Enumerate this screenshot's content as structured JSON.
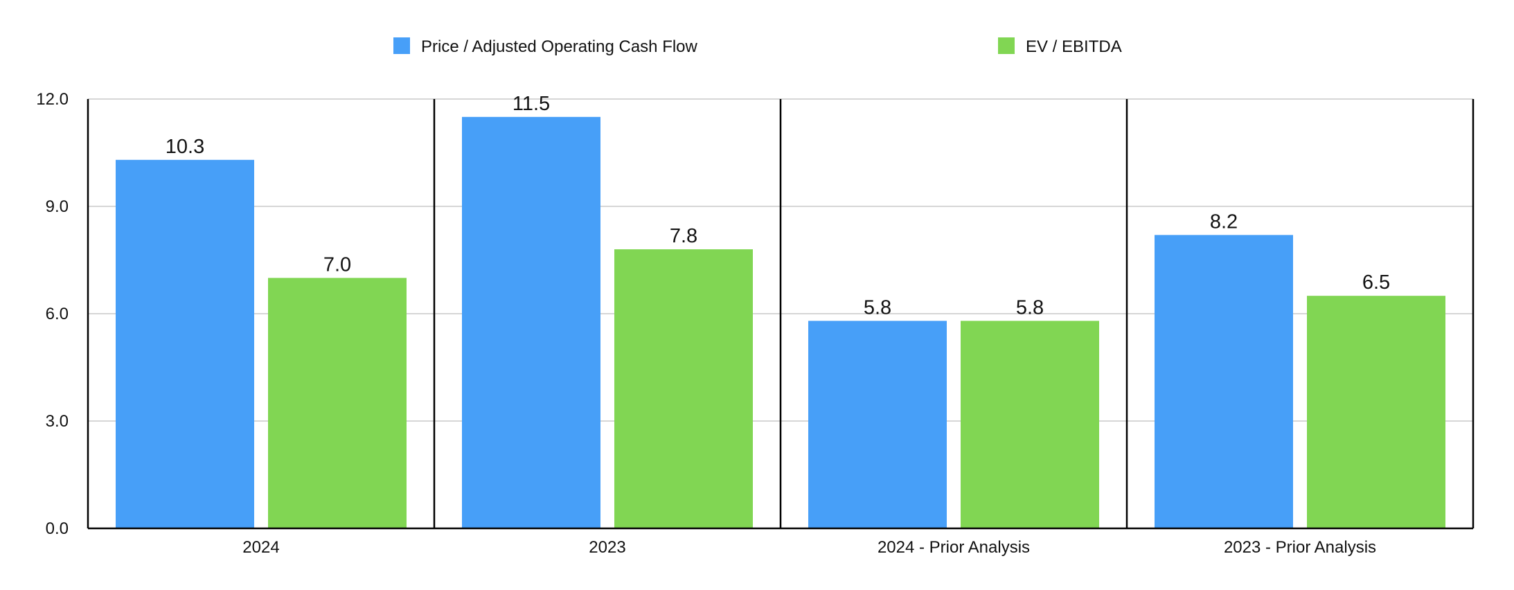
{
  "colors": {
    "series_0": "#479ff8",
    "series_1": "#81d653",
    "grid": "#c8c8c8",
    "axis": "#000000",
    "text": "#111111",
    "background": "#ffffff"
  },
  "chart_data": {
    "type": "bar",
    "title": "",
    "xlabel": "",
    "ylabel": "",
    "categories": [
      "2024",
      "2023",
      "2024 - Prior Analysis",
      "2023 - Prior Analysis"
    ],
    "series": [
      {
        "name": "Price / Adjusted Operating Cash Flow",
        "values": [
          10.3,
          11.5,
          5.8,
          8.2
        ]
      },
      {
        "name": "EV / EBITDA",
        "values": [
          7.0,
          7.8,
          5.8,
          6.5
        ]
      }
    ],
    "data_labels": [
      [
        "10.3",
        "11.5",
        "5.8",
        "8.2"
      ],
      [
        "7.0",
        "7.8",
        "5.8",
        "6.5"
      ]
    ],
    "ylim": [
      0,
      12
    ],
    "yticks": [
      0,
      3,
      6,
      9,
      12
    ],
    "ytick_labels": [
      "0.0",
      "3.0",
      "6.0",
      "9.0",
      "12.0"
    ],
    "grid": true,
    "legend_position": "top-center"
  }
}
